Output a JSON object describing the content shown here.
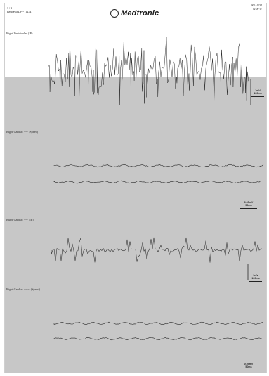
{
  "header": {
    "page_line": "3 / 3",
    "patient_line": "Bendawa Dr--- (1234)",
    "brand": "Medtronic",
    "record_line1": "000A1234",
    "record_line2": "02-08-17"
  },
  "sections": [
    {
      "label": "Right Ventricular (IP)",
      "scale_top": "1mV",
      "scale_bottom": "100ms"
    },
    {
      "label": "Right Cardiac ---- (Speed)",
      "scale_top": "0.05mV",
      "scale_bottom": "50ms"
    },
    {
      "label": "Right Cardiac ---- (IP)",
      "scale_top": "1mV",
      "scale_bottom": "100ms"
    },
    {
      "label": "Right Cardiac ------ (Speed)",
      "scale_top": "0.05mV",
      "scale_bottom": "50ms"
    }
  ],
  "colors": {
    "trace": "#2a2a2a",
    "paper": "#ffffff",
    "scan_gray": "#c7c7c7"
  },
  "icons": {
    "logo": "medtronic-cross-icon"
  }
}
